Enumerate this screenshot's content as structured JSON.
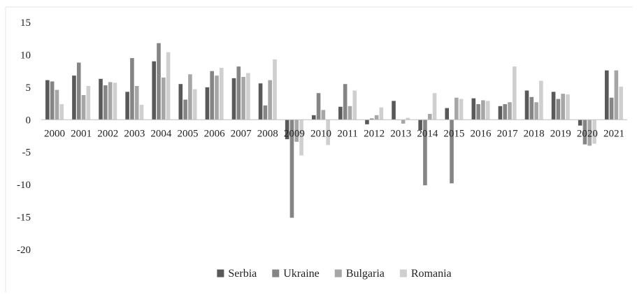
{
  "chart_data": {
    "type": "bar",
    "title": "",
    "xlabel": "",
    "ylabel": "",
    "ylim": [
      -20,
      15
    ],
    "yticks": [
      15,
      10,
      5,
      0,
      -5,
      -10,
      -15,
      -20
    ],
    "grid": false,
    "legend_position": "bottom",
    "categories": [
      "2000",
      "2001",
      "2002",
      "2003",
      "2004",
      "2005",
      "2006",
      "2007",
      "2008",
      "2009",
      "2010",
      "2011",
      "2012",
      "2013",
      "2014",
      "2015",
      "2016",
      "2017",
      "2018",
      "2019",
      "2020",
      "2021"
    ],
    "series": [
      {
        "name": "Serbia",
        "color": "#595959",
        "values": [
          6.1,
          6.8,
          6.3,
          4.3,
          9.0,
          5.5,
          5.0,
          6.4,
          5.6,
          -3.0,
          0.7,
          2.0,
          -0.7,
          2.9,
          -1.6,
          1.8,
          3.3,
          2.1,
          4.5,
          4.3,
          -0.9,
          7.6
        ]
      },
      {
        "name": "Ukraine",
        "color": "#858585",
        "values": [
          5.9,
          8.8,
          5.3,
          9.5,
          11.8,
          3.1,
          7.5,
          8.2,
          2.2,
          -15.1,
          4.1,
          5.5,
          0.2,
          0.0,
          -10.1,
          -9.8,
          2.4,
          2.4,
          3.5,
          3.2,
          -3.8,
          3.4
        ]
      },
      {
        "name": "Bulgaria",
        "color": "#a6a6a6",
        "values": [
          4.6,
          3.8,
          5.8,
          5.2,
          6.5,
          7.0,
          6.8,
          6.6,
          6.1,
          -3.4,
          1.5,
          2.1,
          0.7,
          -0.6,
          0.9,
          3.4,
          3.0,
          2.7,
          2.7,
          4.0,
          -4.0,
          7.6
        ]
      },
      {
        "name": "Romania",
        "color": "#cfcfcf",
        "values": [
          2.4,
          5.2,
          5.7,
          2.3,
          10.4,
          4.7,
          8.0,
          7.2,
          9.3,
          -5.5,
          -3.9,
          4.5,
          1.9,
          0.3,
          4.1,
          3.2,
          2.9,
          8.2,
          6.0,
          3.9,
          -3.7,
          5.1
        ]
      }
    ]
  }
}
